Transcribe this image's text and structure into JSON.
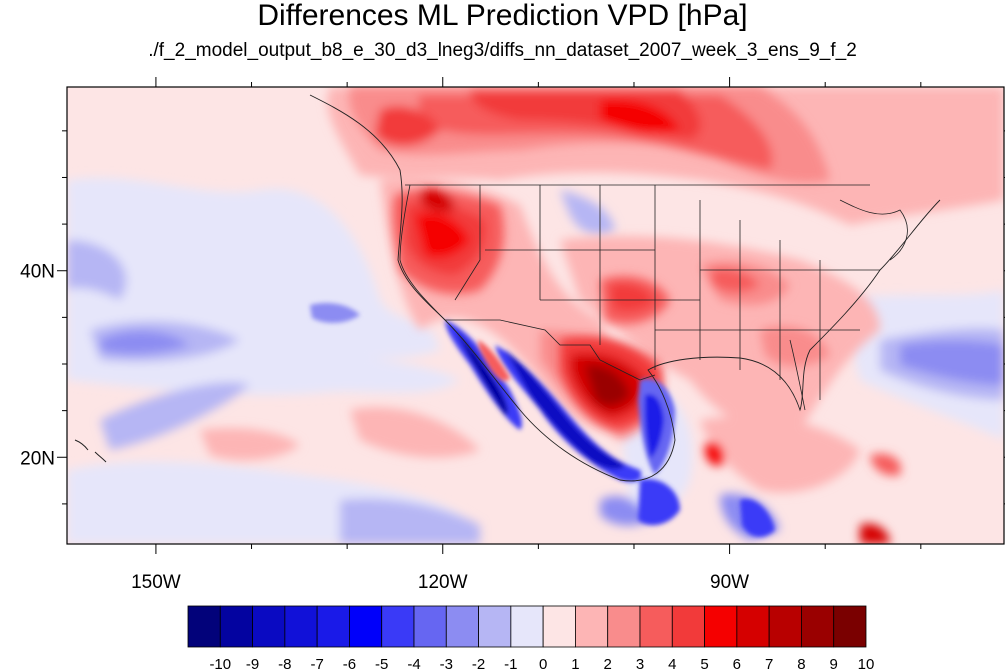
{
  "title": "Differences ML Prediction VPD [hPa]",
  "subtitle": "./f_2_model_output_b8_e_30_d3_lneg3/diffs_nn_dataset_2007_week_3_ens_9_f_2",
  "map": {
    "projection": "cylindrical equidistant",
    "lon_range": [
      -159.3,
      -61.3
    ],
    "lat_range": [
      10.7,
      59.7
    ],
    "lon_ticks": [
      {
        "value": -150,
        "label": "150W"
      },
      {
        "value": -120,
        "label": "120W"
      },
      {
        "value": -90,
        "label": "90W"
      }
    ],
    "lat_ticks": [
      {
        "value": 40,
        "label": "40N"
      },
      {
        "value": 20,
        "label": "20N"
      }
    ],
    "features": [
      "coastlines",
      "US state boundaries",
      "national boundaries"
    ]
  },
  "colorbar": {
    "labels": [
      "-10",
      "-9",
      "-8",
      "-7",
      "-6",
      "-5",
      "-4",
      "-3",
      "-2",
      "-1",
      "0",
      "1",
      "2",
      "3",
      "4",
      "5",
      "6",
      "7",
      "8",
      "9",
      "10"
    ],
    "colors": [
      "#02027a",
      "#0303a0",
      "#0a0ac2",
      "#1111d8",
      "#1a1ae8",
      "#0000fa",
      "#3a3af7",
      "#6666f2",
      "#8c8cf2",
      "#b6b6f4",
      "#e6e6fa",
      "#fde5e5",
      "#fdb5b5",
      "#f98c8c",
      "#f65c5c",
      "#f23a3a",
      "#f50000",
      "#d50000",
      "#b80000",
      "#9a0000",
      "#7a0000"
    ]
  }
}
